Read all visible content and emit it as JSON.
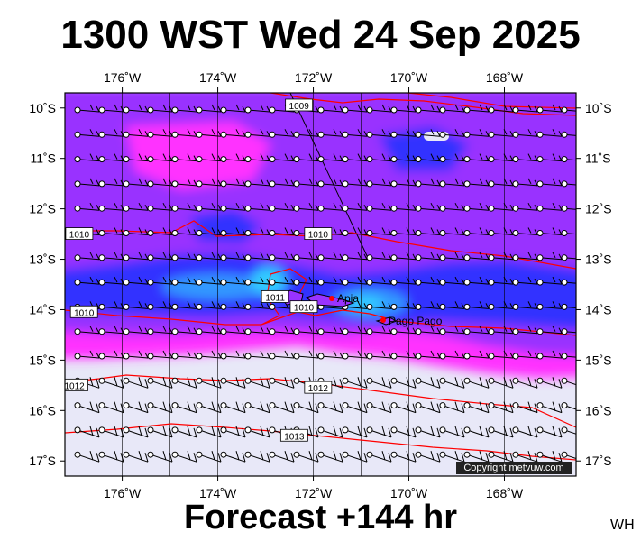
{
  "header": {
    "title": "1300 WST Wed 24 Sep 2025"
  },
  "footer": {
    "forecast_label": "Forecast +144 hr",
    "corner_tag": "WH",
    "copyright": "Copyright metvuw.com"
  },
  "map": {
    "lon_range": [
      -177.2,
      -166.5
    ],
    "lat_range": [
      -17.3,
      -9.7
    ],
    "lon_ticks": [
      {
        "value": -176,
        "label": "176˚W"
      },
      {
        "value": -174,
        "label": "174˚W"
      },
      {
        "value": -172,
        "label": "172˚W"
      },
      {
        "value": -170,
        "label": "170˚W"
      },
      {
        "value": -168,
        "label": "168˚W"
      }
    ],
    "lat_ticks": [
      {
        "value": -10,
        "label": "10˚S"
      },
      {
        "value": -11,
        "label": "11˚S"
      },
      {
        "value": -12,
        "label": "12˚S"
      },
      {
        "value": -13,
        "label": "13˚S"
      },
      {
        "value": -14,
        "label": "14˚S"
      },
      {
        "value": -15,
        "label": "15˚S"
      },
      {
        "value": -16,
        "label": "16˚S"
      },
      {
        "value": -17,
        "label": "17˚S"
      }
    ],
    "colors": {
      "rain_light": "#ff33ff",
      "rain_mid": "#9933ff",
      "rain_heavy": "#3333ff",
      "rain_max": "#33ccff",
      "dry_fill": "#e8e8f8",
      "isobar": "#ff0000"
    },
    "isobar_labels": [
      {
        "text": "1009",
        "lon": -172.3,
        "lat": -9.95
      },
      {
        "text": "1010",
        "lon": -176.9,
        "lat": -12.5
      },
      {
        "text": "1010",
        "lon": -171.9,
        "lat": -12.5
      },
      {
        "text": "1011",
        "lon": -172.8,
        "lat": -13.75
      },
      {
        "text": "1010",
        "lon": -172.2,
        "lat": -13.95
      },
      {
        "text": "1010",
        "lon": -176.8,
        "lat": -14.05
      },
      {
        "text": "1012",
        "lon": -171.9,
        "lat": -15.55
      },
      {
        "text": "1012",
        "lon": -177.0,
        "lat": -15.5
      },
      {
        "text": "1013",
        "lon": -172.4,
        "lat": -16.5
      }
    ],
    "cities": [
      {
        "name": "Apia",
        "lon": -171.75,
        "lat": -13.83
      },
      {
        "name": "Pago Pago",
        "lon": -170.7,
        "lat": -14.28
      }
    ]
  }
}
